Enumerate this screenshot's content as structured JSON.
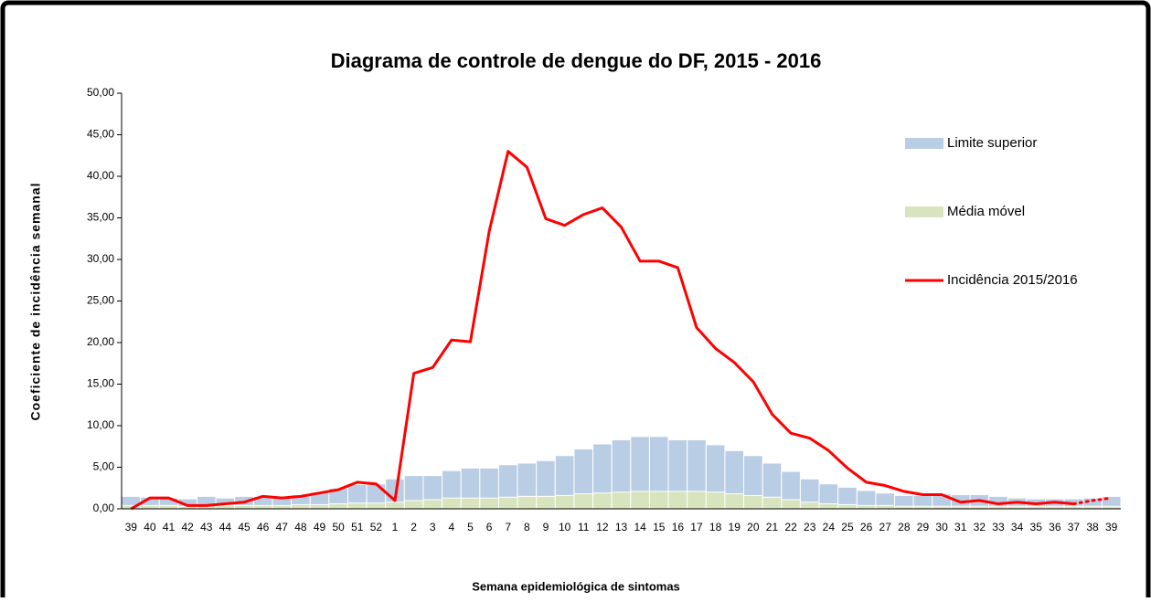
{
  "chart_data": {
    "type": "bar-line",
    "title": "Diagrama de controle de dengue do DF, 2015 - 2016",
    "x_label": "Semana epidemiológica de sintomas",
    "y_label": "Coeficiente de incidência semanal",
    "categories": [
      "39",
      "40",
      "41",
      "42",
      "43",
      "44",
      "45",
      "46",
      "47",
      "48",
      "49",
      "50",
      "51",
      "52",
      "1",
      "2",
      "3",
      "4",
      "5",
      "6",
      "7",
      "8",
      "9",
      "10",
      "11",
      "12",
      "13",
      "14",
      "15",
      "16",
      "17",
      "18",
      "19",
      "20",
      "21",
      "22",
      "23",
      "24",
      "25",
      "26",
      "27",
      "28",
      "29",
      "30",
      "31",
      "32",
      "33",
      "34",
      "35",
      "36",
      "37",
      "38",
      "39"
    ],
    "series": [
      {
        "name": "Limite superior",
        "kind": "bar",
        "color": "#b9cde5",
        "values": [
          1.5,
          1.4,
          1.3,
          1.2,
          1.5,
          1.3,
          1.5,
          1.5,
          1.5,
          1.7,
          2.0,
          2.5,
          2.9,
          3.0,
          3.6,
          4.0,
          4.0,
          4.6,
          4.9,
          4.9,
          5.3,
          5.5,
          5.8,
          6.4,
          7.2,
          7.8,
          8.3,
          8.7,
          8.7,
          8.3,
          8.3,
          7.7,
          7.0,
          6.4,
          5.5,
          4.5,
          3.6,
          3.0,
          2.6,
          2.2,
          1.9,
          1.6,
          1.6,
          1.8,
          1.7,
          1.7,
          1.5,
          1.3,
          1.2,
          1.2,
          1.2,
          1.3,
          1.5
        ]
      },
      {
        "name": "Média móvel",
        "kind": "bar",
        "color": "#d7e4bd",
        "values": [
          0.4,
          0.4,
          0.4,
          0.3,
          0.4,
          0.4,
          0.4,
          0.4,
          0.4,
          0.5,
          0.5,
          0.6,
          0.7,
          0.7,
          0.8,
          1.0,
          1.1,
          1.3,
          1.3,
          1.3,
          1.4,
          1.5,
          1.5,
          1.6,
          1.8,
          1.9,
          2.0,
          2.1,
          2.1,
          2.1,
          2.1,
          2.0,
          1.8,
          1.6,
          1.4,
          1.1,
          0.8,
          0.6,
          0.5,
          0.4,
          0.4,
          0.3,
          0.3,
          0.3,
          0.3,
          0.3,
          0.3,
          0.3,
          0.3,
          0.3,
          0.3,
          0.3,
          0.3
        ]
      },
      {
        "name": "Incidência 2015/2016",
        "kind": "line",
        "color": "#ff0000",
        "dotted_from_index": 50,
        "values": [
          0.0,
          1.3,
          1.3,
          0.4,
          0.4,
          0.6,
          0.8,
          1.5,
          1.3,
          1.5,
          1.9,
          2.3,
          3.2,
          3.0,
          1.0,
          16.3,
          17.0,
          20.3,
          20.1,
          33.4,
          43.0,
          41.1,
          34.9,
          34.1,
          35.4,
          36.2,
          33.9,
          29.8,
          29.8,
          29.0,
          21.8,
          19.3,
          17.6,
          15.3,
          11.4,
          9.1,
          8.5,
          7.0,
          4.9,
          3.2,
          2.8,
          2.1,
          1.7,
          1.7,
          0.8,
          1.0,
          0.6,
          0.8,
          0.6,
          0.8,
          0.6,
          1.0,
          1.3
        ]
      }
    ],
    "ylim": [
      0,
      50
    ],
    "yticks": [
      {
        "value": 0,
        "label": "0,00"
      },
      {
        "value": 5,
        "label": "5,00"
      },
      {
        "value": 10,
        "label": "10,00"
      },
      {
        "value": 15,
        "label": "15,00"
      },
      {
        "value": 20,
        "label": "20,00"
      },
      {
        "value": 25,
        "label": "25,00"
      },
      {
        "value": 30,
        "label": "30,00"
      },
      {
        "value": 35,
        "label": "35,00"
      },
      {
        "value": 40,
        "label": "40,00"
      },
      {
        "value": 45,
        "label": "45,00"
      },
      {
        "value": 50,
        "label": "50,00"
      }
    ],
    "legend": "right"
  }
}
